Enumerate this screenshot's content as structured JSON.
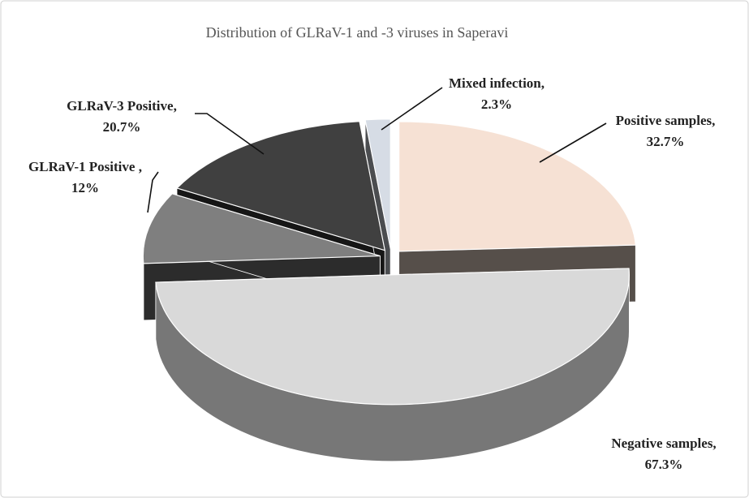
{
  "chart_data": {
    "type": "pie3d",
    "title": "Distribution of GLRaV-1 and -3 viruses in Saperavi",
    "categories": [
      "Positive samples,",
      "Negative samples,",
      "GLRaV-1 Positive ,",
      "GLRaV-3 Positive,",
      "Mixed infection,"
    ],
    "values": [
      32.7,
      67.3,
      12,
      20.7,
      2.3
    ],
    "value_labels": [
      "32.7%",
      "67.3%",
      "12%",
      "20.7%",
      "2.3%"
    ],
    "colors": [
      "#f6e1d4",
      "#d9d9d9",
      "#7f7f7f",
      "#404040",
      "#d6dce5"
    ]
  }
}
